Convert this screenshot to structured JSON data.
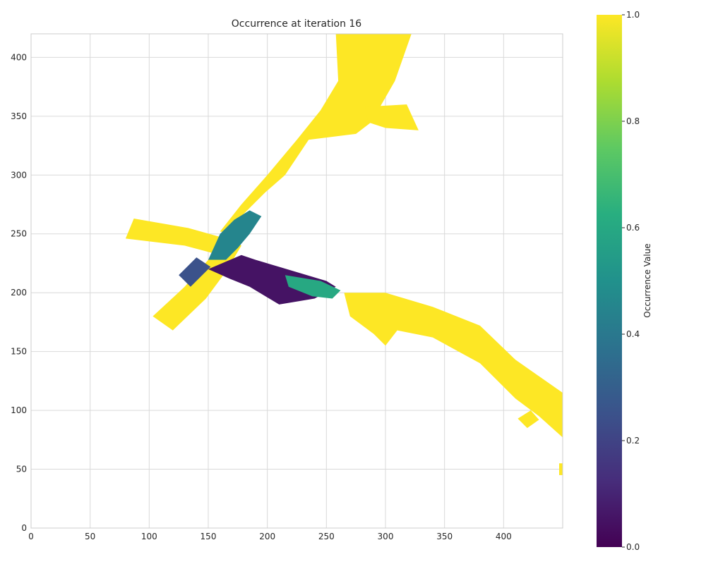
{
  "chart_data": {
    "type": "heatmap",
    "title": "Occurrence at iteration 16",
    "xlim": [
      0,
      450
    ],
    "ylim": [
      0,
      420
    ],
    "x_ticks": [
      "0",
      "50",
      "100",
      "150",
      "200",
      "250",
      "300",
      "350",
      "400"
    ],
    "y_ticks": [
      "0",
      "50",
      "100",
      "150",
      "200",
      "250",
      "300",
      "350",
      "400"
    ],
    "grid": true,
    "colormap": "viridis",
    "colorbar": {
      "label": "Occurrence Value",
      "range": [
        0,
        1
      ],
      "ticks": [
        "0.0",
        "0.2",
        "0.4",
        "0.6",
        "0.8",
        "1.0"
      ]
    },
    "regions": [
      {
        "name": "north road",
        "value": 1.0,
        "polygon": [
          [
            258,
            420
          ],
          [
            322,
            420
          ],
          [
            308,
            380
          ],
          [
            288,
            345
          ],
          [
            275,
            335
          ],
          [
            235,
            330
          ],
          [
            215,
            300
          ],
          [
            198,
            285
          ],
          [
            175,
            262
          ],
          [
            170,
            250
          ],
          [
            160,
            252
          ],
          [
            178,
            275
          ],
          [
            200,
            300
          ],
          [
            225,
            330
          ],
          [
            245,
            355
          ],
          [
            260,
            380
          ]
        ]
      },
      {
        "name": "north road side spur",
        "value": 1.0,
        "polygon": [
          [
            283,
            358
          ],
          [
            318,
            360
          ],
          [
            328,
            338
          ],
          [
            300,
            340
          ],
          [
            285,
            345
          ]
        ]
      },
      {
        "name": "south-west road",
        "value": 1.0,
        "polygon": [
          [
            103,
            180
          ],
          [
            120,
            168
          ],
          [
            148,
            195
          ],
          [
            165,
            218
          ],
          [
            178,
            240
          ],
          [
            168,
            248
          ],
          [
            150,
            228
          ],
          [
            130,
            205
          ]
        ]
      },
      {
        "name": "west arm",
        "value": 1.0,
        "polygon": [
          [
            80,
            246
          ],
          [
            87,
            263
          ],
          [
            133,
            255
          ],
          [
            165,
            246
          ],
          [
            160,
            232
          ],
          [
            130,
            240
          ]
        ]
      },
      {
        "name": "east road",
        "value": 1.0,
        "polygon": [
          [
            265,
            200
          ],
          [
            300,
            200
          ],
          [
            340,
            188
          ],
          [
            380,
            172
          ],
          [
            410,
            143
          ],
          [
            450,
            115
          ],
          [
            450,
            77
          ],
          [
            430,
            95
          ],
          [
            410,
            110
          ],
          [
            380,
            140
          ],
          [
            340,
            162
          ],
          [
            310,
            168
          ],
          [
            300,
            155
          ],
          [
            290,
            165
          ],
          [
            270,
            180
          ]
        ]
      },
      {
        "name": "east road branch",
        "value": 1.0,
        "polygon": [
          [
            412,
            93
          ],
          [
            420,
            85
          ],
          [
            430,
            92
          ],
          [
            423,
            100
          ]
        ]
      },
      {
        "name": "far east fragment",
        "value": 1.0,
        "polygon": [
          [
            447,
            45
          ],
          [
            450,
            45
          ],
          [
            450,
            55
          ],
          [
            447,
            55
          ]
        ]
      },
      {
        "name": "intersection low occurrence",
        "value": 0.05,
        "polygon": [
          [
            178,
            232
          ],
          [
            190,
            228
          ],
          [
            210,
            222
          ],
          [
            250,
            210
          ],
          [
            258,
            205
          ],
          [
            240,
            195
          ],
          [
            210,
            190
          ],
          [
            228,
            178
          ],
          [
            210,
            190
          ],
          [
            185,
            205
          ],
          [
            168,
            212
          ],
          [
            150,
            220
          ]
        ]
      },
      {
        "name": "intersection mixed",
        "value": 0.45,
        "polygon": [
          [
            150,
            228
          ],
          [
            160,
            250
          ],
          [
            172,
            262
          ],
          [
            185,
            270
          ],
          [
            195,
            265
          ],
          [
            185,
            250
          ],
          [
            175,
            238
          ],
          [
            165,
            228
          ]
        ]
      },
      {
        "name": "intersection south-west mixed",
        "value": 0.25,
        "polygon": [
          [
            125,
            215
          ],
          [
            140,
            230
          ],
          [
            152,
            222
          ],
          [
            135,
            205
          ]
        ]
      },
      {
        "name": "east arm transition",
        "value": 0.6,
        "polygon": [
          [
            215,
            215
          ],
          [
            245,
            210
          ],
          [
            262,
            202
          ],
          [
            255,
            195
          ],
          [
            238,
            197
          ],
          [
            218,
            205
          ]
        ]
      }
    ]
  }
}
